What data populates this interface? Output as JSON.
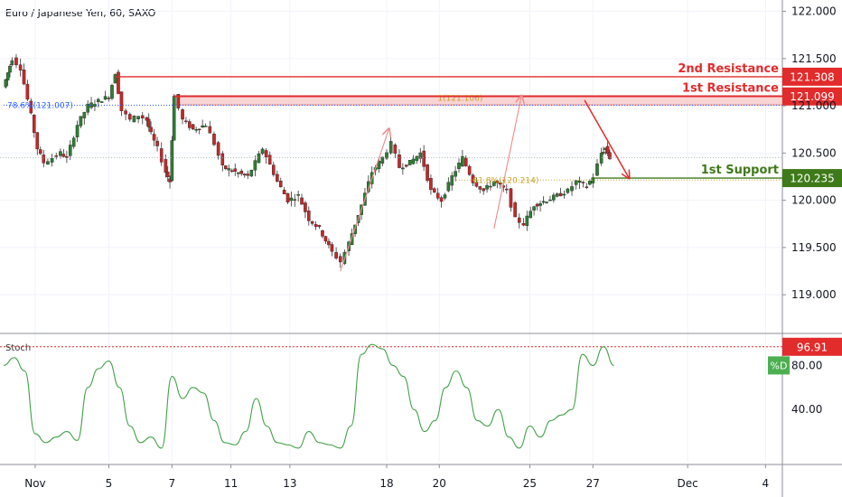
{
  "header": {
    "title": "Euro / Japanese Yen, 60, SAXO"
  },
  "chart_data": [
    {
      "type": "candlestick",
      "title": "Euro / Japanese Yen, 60, SAXO",
      "x_ticks": [
        "Nov",
        "5",
        "7",
        "11",
        "13",
        "18",
        "20",
        "25",
        "27",
        "Dec",
        "4"
      ],
      "y_ticks": [
        "122.000",
        "121.500",
        "121.000",
        "120.500",
        "120.000",
        "119.500",
        "119.000"
      ],
      "ylim": [
        118.6,
        122.12
      ],
      "approx_close_path": [
        [
          0,
          121.2
        ],
        [
          0.2,
          121.35
        ],
        [
          0.4,
          121.5
        ],
        [
          0.8,
          121.4
        ],
        [
          1.3,
          120.9
        ],
        [
          1.6,
          120.55
        ],
        [
          1.9,
          120.4
        ],
        [
          2.3,
          120.45
        ],
        [
          2.7,
          120.5
        ],
        [
          3.0,
          120.45
        ],
        [
          3.5,
          120.8
        ],
        [
          4.0,
          121.0
        ],
        [
          4.5,
          121.05
        ],
        [
          5.0,
          121.1
        ],
        [
          5.3,
          121.35
        ],
        [
          5.6,
          120.95
        ],
        [
          6.0,
          120.85
        ],
        [
          6.4,
          120.9
        ],
        [
          6.8,
          120.85
        ],
        [
          7.0,
          120.7
        ],
        [
          7.3,
          120.55
        ],
        [
          7.7,
          120.3
        ],
        [
          7.9,
          120.2
        ],
        [
          8.1,
          121.1
        ],
        [
          8.5,
          120.85
        ],
        [
          9.0,
          120.75
        ],
        [
          9.6,
          120.8
        ],
        [
          10.0,
          120.6
        ],
        [
          10.4,
          120.35
        ],
        [
          11.0,
          120.3
        ],
        [
          11.6,
          120.25
        ],
        [
          12.3,
          120.55
        ],
        [
          13.0,
          120.2
        ],
        [
          13.5,
          120.0
        ],
        [
          14.0,
          120.05
        ],
        [
          14.5,
          119.8
        ],
        [
          15.0,
          119.7
        ],
        [
          15.6,
          119.45
        ],
        [
          16.0,
          119.35
        ],
        [
          16.4,
          119.55
        ],
        [
          17.0,
          119.95
        ],
        [
          17.5,
          120.3
        ],
        [
          18.0,
          120.45
        ],
        [
          18.4,
          120.6
        ],
        [
          18.8,
          120.35
        ],
        [
          19.3,
          120.4
        ],
        [
          19.8,
          120.5
        ],
        [
          20.3,
          120.1
        ],
        [
          20.8,
          120.0
        ],
        [
          21.3,
          120.25
        ],
        [
          21.8,
          120.45
        ],
        [
          22.3,
          120.2
        ],
        [
          22.8,
          120.1
        ],
        [
          23.3,
          120.2
        ],
        [
          23.9,
          120.1
        ],
        [
          24.3,
          119.8
        ],
        [
          24.7,
          119.75
        ],
        [
          25.2,
          119.95
        ],
        [
          25.8,
          120.0
        ],
        [
          26.3,
          120.05
        ],
        [
          26.8,
          120.1
        ],
        [
          27.2,
          120.2
        ],
        [
          27.7,
          120.15
        ],
        [
          28.0,
          120.25
        ],
        [
          28.4,
          120.5
        ],
        [
          28.6,
          120.55
        ],
        [
          28.8,
          120.45
        ]
      ],
      "x_index_of_ticks": [
        1.5,
        5.0,
        8.0,
        10.8,
        13.6,
        18.2,
        20.7,
        25.0,
        28.0,
        32.5,
        36.2
      ],
      "levels": [
        {
          "name": "2nd Resistance",
          "value": "121.308",
          "price": 121.308,
          "color": "#e22b2b"
        },
        {
          "name": "1st Resistance",
          "value": "121.099",
          "price": 121.099,
          "color": "#e22b2b"
        },
        {
          "name": "1st Support",
          "value": "120.235",
          "price": 120.235,
          "color": "#3f7a1a"
        }
      ],
      "resistance_zone": {
        "label": "1(121.106)",
        "from": 121.01,
        "to": 121.11
      },
      "fib_labels": [
        {
          "text": "78.6%(121.007)",
          "price": 121.007,
          "color": "#2962ff"
        },
        {
          "text": "61.8%(120.214)",
          "price": 120.214,
          "color": "#c9a227"
        }
      ],
      "stoch": {
        "label": "Stoch",
        "legend": "%D",
        "current": "96.91",
        "y_ticks": [
          "80.00",
          "40.00"
        ],
        "ylim": [
          0,
          100
        ],
        "values": [
          [
            0,
            80
          ],
          [
            0.5,
            87
          ],
          [
            1.0,
            75
          ],
          [
            1.5,
            18
          ],
          [
            2.0,
            10
          ],
          [
            2.5,
            15
          ],
          [
            3.0,
            20
          ],
          [
            3.5,
            12
          ],
          [
            4.0,
            60
          ],
          [
            4.5,
            77
          ],
          [
            5.0,
            84
          ],
          [
            5.5,
            60
          ],
          [
            6.0,
            25
          ],
          [
            6.5,
            10
          ],
          [
            7.0,
            15
          ],
          [
            7.5,
            5
          ],
          [
            8.0,
            70
          ],
          [
            8.5,
            50
          ],
          [
            9.0,
            60
          ],
          [
            9.5,
            55
          ],
          [
            10.0,
            30
          ],
          [
            10.5,
            10
          ],
          [
            11.0,
            8
          ],
          [
            11.5,
            20
          ],
          [
            12.0,
            50
          ],
          [
            12.5,
            25
          ],
          [
            13.0,
            10
          ],
          [
            13.5,
            8
          ],
          [
            14.0,
            5
          ],
          [
            14.5,
            20
          ],
          [
            15.0,
            10
          ],
          [
            15.5,
            8
          ],
          [
            16.0,
            5
          ],
          [
            16.5,
            25
          ],
          [
            17.0,
            90
          ],
          [
            17.5,
            99
          ],
          [
            18.0,
            95
          ],
          [
            18.5,
            80
          ],
          [
            19.0,
            70
          ],
          [
            19.5,
            40
          ],
          [
            20.0,
            20
          ],
          [
            20.5,
            30
          ],
          [
            21.0,
            60
          ],
          [
            21.5,
            75
          ],
          [
            22.0,
            60
          ],
          [
            22.5,
            30
          ],
          [
            23.0,
            25
          ],
          [
            23.5,
            40
          ],
          [
            24.0,
            15
          ],
          [
            24.5,
            5
          ],
          [
            25.0,
            25
          ],
          [
            25.5,
            15
          ],
          [
            26.0,
            30
          ],
          [
            26.5,
            35
          ],
          [
            27.0,
            40
          ],
          [
            27.5,
            90
          ],
          [
            28.0,
            80
          ],
          [
            28.5,
            97
          ],
          [
            29.0,
            80
          ]
        ]
      }
    }
  ]
}
